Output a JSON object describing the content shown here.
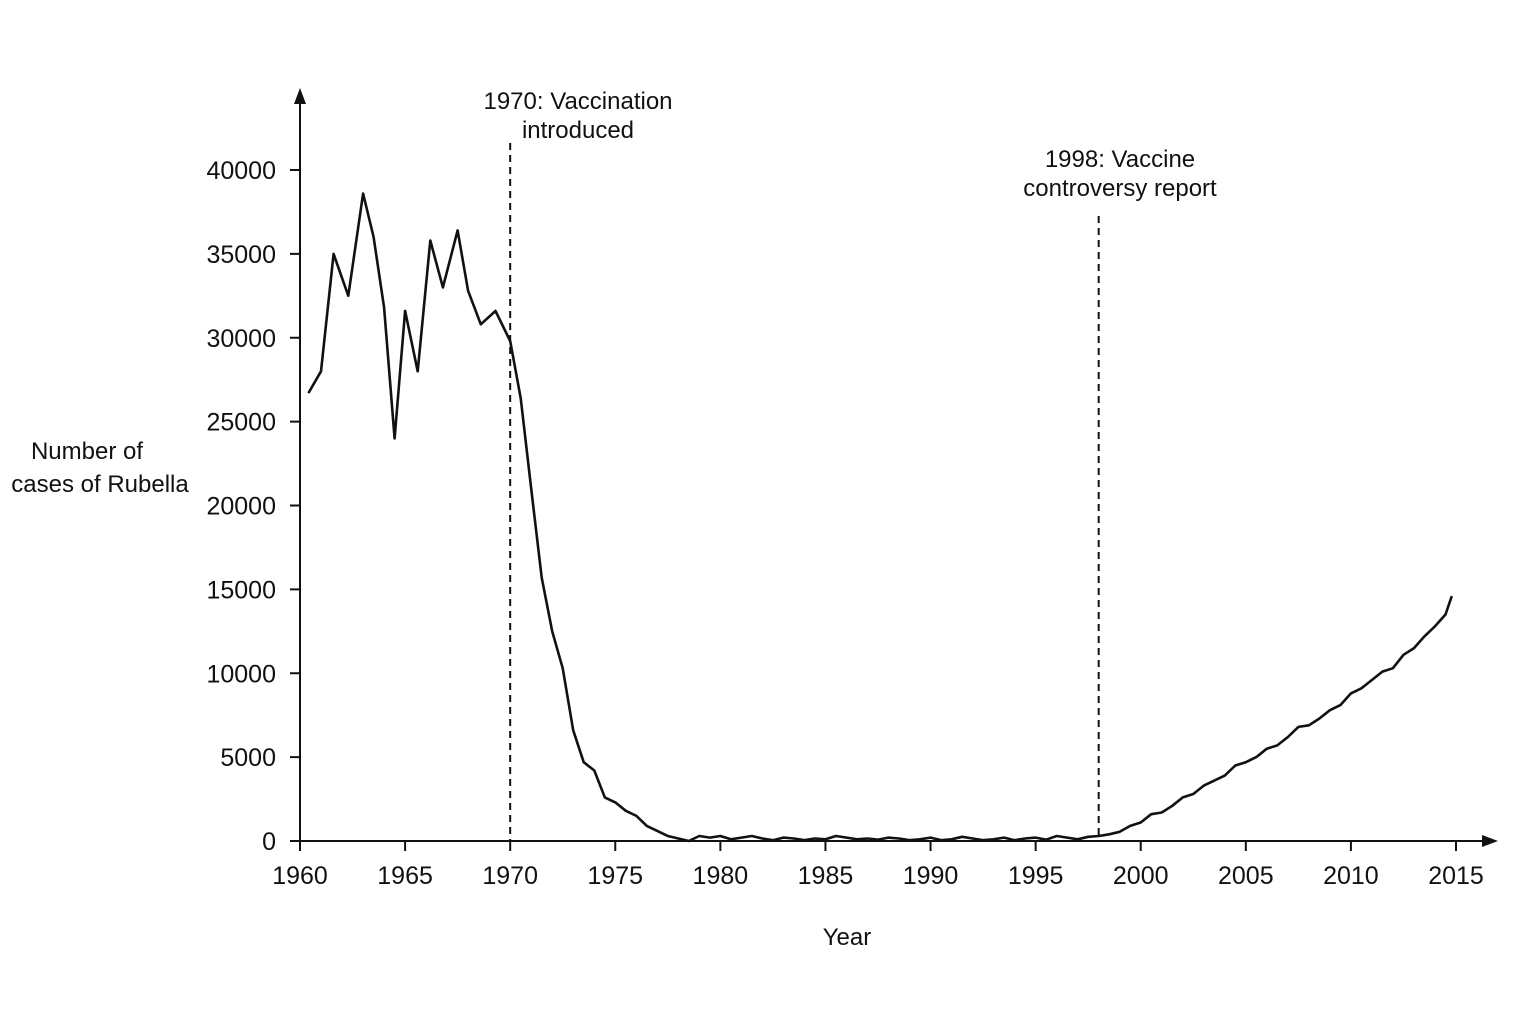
{
  "chart_data": {
    "type": "line",
    "title": "",
    "xlabel": "Year",
    "ylabel_lines": [
      "Number of",
      "cases of Rubella"
    ],
    "xlim": [
      1960,
      2015
    ],
    "ylim": [
      0,
      40000
    ],
    "x_ticks": [
      1960,
      1965,
      1970,
      1975,
      1980,
      1985,
      1990,
      1995,
      2000,
      2005,
      2010,
      2015
    ],
    "y_ticks": [
      0,
      5000,
      10000,
      15000,
      20000,
      25000,
      30000,
      35000,
      40000
    ],
    "grid": false,
    "legend": "none",
    "line_color": "#111111",
    "series": [
      {
        "x": [
          1960.4,
          1961,
          1961.6,
          1962.3,
          1963,
          1963.5,
          1964,
          1964.5,
          1965,
          1965.6,
          1966.2,
          1966.8,
          1967.5,
          1968,
          1968.6,
          1969.3,
          1970,
          1970.5,
          1971,
          1971.5,
          1972,
          1972.5,
          1973,
          1973.5,
          1974,
          1974.5,
          1975,
          1975.5,
          1976,
          1976.5,
          1977,
          1977.5,
          1978,
          1978.5,
          1979,
          1979.5,
          1980,
          1980.5,
          1981,
          1981.5,
          1982,
          1982.5,
          1983,
          1983.5,
          1984,
          1984.5,
          1985,
          1985.5,
          1986,
          1986.5,
          1987,
          1987.5,
          1988,
          1988.5,
          1989,
          1989.5,
          1990,
          1990.5,
          1991,
          1991.5,
          1992,
          1992.5,
          1993,
          1993.5,
          1994,
          1994.5,
          1995,
          1995.5,
          1996,
          1996.5,
          1997,
          1997.5,
          1998,
          1998.5,
          1999,
          1999.5,
          2000,
          2000.5,
          2001,
          2001.5,
          2002,
          2002.5,
          2003,
          2003.5,
          2004,
          2004.5,
          2005,
          2005.5,
          2006,
          2006.5,
          2007,
          2007.5,
          2008,
          2008.5,
          2009,
          2009.5,
          2010,
          2010.5,
          2011,
          2011.5,
          2012,
          2012.5,
          2013,
          2013.5,
          2014,
          2014.5,
          2014.8
        ],
        "y": [
          26700,
          28000,
          35000,
          32500,
          38600,
          36000,
          31800,
          24000,
          31600,
          28000,
          35800,
          33000,
          36400,
          32800,
          30800,
          31600,
          29800,
          26400,
          21000,
          15700,
          12500,
          10300,
          6600,
          4700,
          4200,
          2600,
          2300,
          1800,
          1500,
          900,
          600,
          300,
          150,
          0,
          300,
          200,
          300,
          100,
          200,
          300,
          150,
          50,
          200,
          150,
          50,
          150,
          100,
          300,
          200,
          100,
          150,
          80,
          200,
          150,
          50,
          100,
          200,
          50,
          100,
          250,
          150,
          50,
          100,
          200,
          50,
          150,
          200,
          80,
          300,
          200,
          100,
          250,
          300,
          400,
          550,
          900,
          1100,
          1600,
          1700,
          2100,
          2600,
          2800,
          3300,
          3600,
          3900,
          4500,
          4700,
          5000,
          5500,
          5700,
          6200,
          6800,
          6900,
          7300,
          7800,
          8100,
          8800,
          9100,
          9600,
          10100,
          10300,
          11100,
          11500,
          12200,
          12800,
          13500,
          14600
        ]
      }
    ],
    "annotations": [
      {
        "x": 1970,
        "lines": [
          "1970: Vaccination",
          "introduced"
        ]
      },
      {
        "x": 1998,
        "lines": [
          "1998: Vaccine",
          "controversy report"
        ]
      }
    ]
  }
}
